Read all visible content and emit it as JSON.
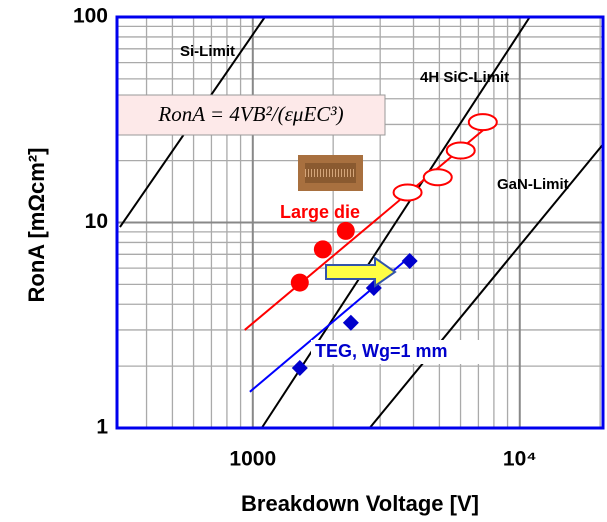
{
  "chart_data": {
    "type": "scatter",
    "x_label": "Breakdown Voltage [V]",
    "y_label": "RonA [mΩcm²]",
    "formula": "RonA = 4VB²/(εμEC³)",
    "log_x": true,
    "log_y": true,
    "grid": true,
    "xlim": [
      310,
      20500
    ],
    "ylim": [
      1,
      100
    ],
    "xticks": [
      1000,
      {
        "value": 10000,
        "label": "10⁴"
      }
    ],
    "yticks": [
      1,
      10,
      100
    ],
    "series": [
      {
        "name": "Si-Limit",
        "color": "#000000",
        "marker": "line",
        "x": [
          318,
          1110
        ],
        "values": [
          9.5,
          100
        ]
      },
      {
        "name": "4H SiC-Limit",
        "color": "#000000",
        "marker": "line",
        "x": [
          1080,
          10900
        ],
        "values": [
          1,
          100
        ]
      },
      {
        "name": "GaN-Limit",
        "color": "#000000",
        "marker": "line",
        "x": [
          2740,
          20500
        ],
        "values": [
          1,
          24
        ]
      },
      {
        "color": "#ff0000",
        "marker": "line",
        "x": [
          933,
          7730
        ],
        "values": [
          3.0,
          30
        ]
      },
      {
        "color": "#0000ff",
        "marker": "line",
        "x": [
          975,
          3870
        ],
        "values": [
          1.5,
          6.8
        ]
      },
      {
        "name": "Large die",
        "color": "#ff0000",
        "marker": "circle",
        "x": [
          1500,
          1830,
          2230
        ],
        "values": [
          5.1,
          7.4,
          9.1
        ]
      },
      {
        "color": "#ff0000",
        "marker": "open-ellipse",
        "x": [
          3800,
          4930,
          6010,
          7270
        ],
        "values": [
          14,
          16.6,
          22.4,
          30.8
        ]
      },
      {
        "name": "TEG, Wg=1 mm",
        "color": "#0000cc",
        "marker": "diamond",
        "x": [
          1500,
          2330,
          2840,
          3870
        ],
        "values": [
          1.96,
          3.25,
          4.8,
          6.5
        ]
      }
    ]
  }
}
